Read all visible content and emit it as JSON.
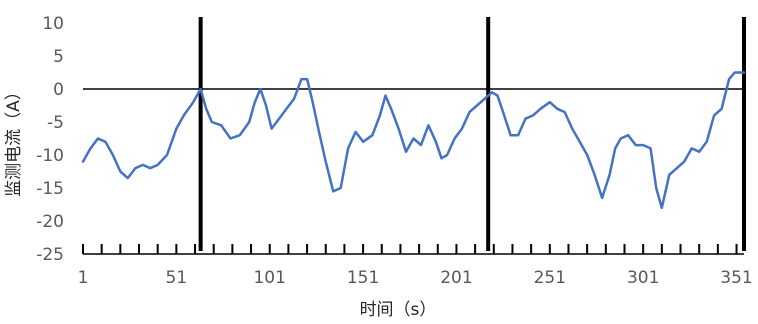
{
  "chart_data": {
    "type": "line",
    "title": "",
    "xlabel": "时间（s）",
    "ylabel": "监测电流（A）",
    "xlim": [
      1,
      355
    ],
    "ylim": [
      -25,
      10
    ],
    "y_ticks": [
      10,
      5,
      0,
      -5,
      -10,
      -15,
      -20,
      -25
    ],
    "y_tick_labels": [
      "10",
      "5",
      "0",
      "-5",
      "-10",
      "-15",
      "-20",
      "-25"
    ],
    "x_ticks": [
      1,
      51,
      101,
      151,
      201,
      251,
      301,
      351
    ],
    "x_tick_labels": [
      "1",
      "51",
      "101",
      "151",
      "201",
      "251",
      "301",
      "351"
    ],
    "grid": false,
    "legend": "none",
    "series_color": "#4472C4",
    "marker_lines_x": [
      64,
      218,
      355
    ],
    "series": [
      {
        "x": [
          1,
          5,
          9,
          13,
          17,
          21,
          25,
          29,
          33,
          37,
          41,
          46,
          51,
          55,
          60,
          64,
          67,
          70,
          75,
          80,
          85,
          90,
          93,
          96,
          99,
          102,
          106,
          110,
          114,
          118,
          121,
          124,
          127,
          131,
          135,
          139,
          143,
          147,
          151,
          156,
          160,
          163,
          166,
          170,
          174,
          178,
          182,
          186,
          190,
          193,
          196,
          200,
          204,
          208,
          212,
          216,
          220,
          223,
          226,
          230,
          234,
          238,
          242,
          246,
          251,
          255,
          259,
          263,
          267,
          271,
          275,
          279,
          283,
          286,
          289,
          293,
          297,
          301,
          305,
          308,
          311,
          315,
          319,
          323,
          327,
          331,
          335,
          339,
          343,
          347,
          350,
          353,
          355
        ],
        "y": [
          -11,
          -9,
          -7.5,
          -8,
          -10,
          -12.5,
          -13.5,
          -12,
          -11.5,
          -12,
          -11.5,
          -10,
          -6,
          -4,
          -2,
          0,
          -3,
          -5,
          -5.5,
          -7.5,
          -7,
          -5,
          -2,
          0,
          -2.5,
          -6,
          -4.5,
          -3,
          -1.5,
          1.5,
          1.5,
          -2,
          -6,
          -11,
          -15.5,
          -15,
          -9,
          -6.5,
          -8,
          -7,
          -4,
          -1,
          -3,
          -6,
          -9.5,
          -7.5,
          -8.5,
          -5.5,
          -8,
          -10.5,
          -10,
          -7.5,
          -6,
          -3.5,
          -2.5,
          -1.5,
          -0.5,
          -1,
          -3.5,
          -7,
          -7,
          -4.5,
          -4,
          -3,
          -2,
          -3,
          -3.5,
          -6,
          -8,
          -10,
          -13,
          -16.5,
          -13,
          -9,
          -7.5,
          -7,
          -8.5,
          -8.5,
          -9,
          -15,
          -18,
          -13,
          -12,
          -11,
          -9,
          -9.5,
          -8,
          -4,
          -3,
          1.5,
          2.5,
          2.5,
          2.5
        ]
      }
    ]
  }
}
